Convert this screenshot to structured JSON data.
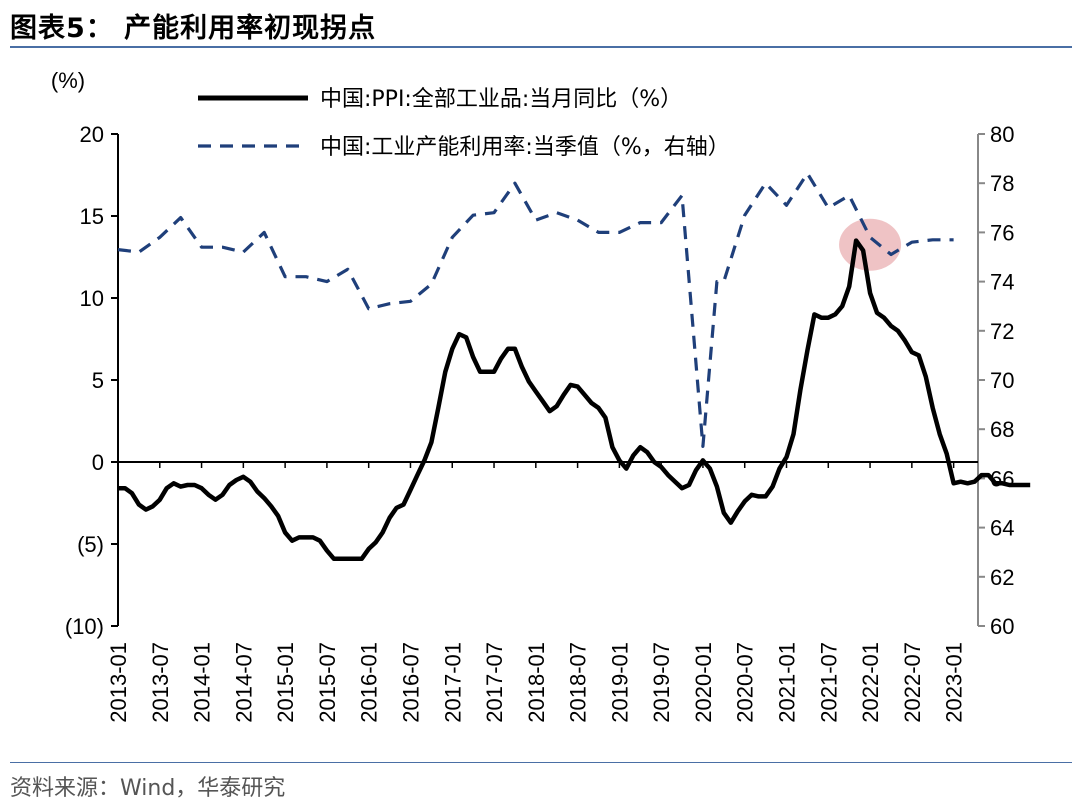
{
  "header": {
    "title": "图表5：  产能利用率初现拐点"
  },
  "footer": {
    "source": "资料来源：Wind，华泰研究"
  },
  "chart_data": {
    "type": "line",
    "left_unit": "(%)",
    "x_tick_labels": [
      "2013-01",
      "2013-07",
      "2014-01",
      "2014-07",
      "2015-01",
      "2015-07",
      "2016-01",
      "2016-07",
      "2017-01",
      "2017-07",
      "2018-01",
      "2018-07",
      "2019-01",
      "2019-07",
      "2020-01",
      "2020-07",
      "2021-01",
      "2021-07",
      "2022-01",
      "2022-07",
      "2023-01"
    ],
    "y_left": {
      "min": -10,
      "max": 20,
      "ticks": [
        20,
        15,
        10,
        5,
        0,
        -5,
        -10
      ],
      "tick_labels": [
        "20",
        "15",
        "10",
        "5",
        "0",
        "(5)",
        "(10)"
      ]
    },
    "y_right": {
      "min": 60,
      "max": 80,
      "ticks": [
        80,
        78,
        76,
        74,
        72,
        70,
        68,
        66,
        64,
        62,
        60
      ],
      "tick_labels": [
        "80",
        "78",
        "76",
        "74",
        "72",
        "70",
        "68",
        "66",
        "64",
        "62",
        "60"
      ]
    },
    "legend_position": "top",
    "colors": {
      "ppi": "#000000",
      "capacity": "#1f3f7a",
      "highlight": "#e8a9ad",
      "axis_right": "#888888"
    },
    "series": [
      {
        "name": "中国:PPI:全部工业品:当月同比（%）",
        "axis": "left",
        "style": "solid",
        "x": [
          0,
          1,
          2,
          3,
          4,
          5,
          6,
          7,
          8,
          9,
          10,
          11,
          12,
          13,
          14,
          15,
          16,
          17,
          18,
          19,
          20,
          21,
          22,
          23,
          24,
          25,
          26,
          27,
          28,
          29,
          30,
          31,
          32,
          33,
          34,
          35,
          36,
          37,
          38,
          39,
          40,
          41,
          42,
          43,
          44,
          45,
          46,
          47,
          48,
          49,
          50,
          51,
          52,
          53,
          54,
          55,
          56,
          57,
          58,
          59,
          60,
          61,
          62,
          63,
          64,
          65,
          66,
          67,
          68,
          69,
          70,
          71,
          72,
          73,
          74,
          75,
          76,
          77,
          78,
          79,
          80,
          81,
          82,
          83,
          84,
          85,
          86,
          87,
          88,
          89,
          90,
          91,
          92,
          93,
          94,
          95,
          96,
          97,
          98,
          99,
          100,
          101,
          102,
          103,
          104,
          105,
          106,
          107,
          108,
          109,
          110,
          111,
          112,
          113,
          114,
          115,
          116,
          117,
          118,
          119,
          120,
          121,
          122,
          123,
          124,
          125,
          126,
          127,
          128,
          129,
          130,
          131
        ],
        "values": [
          -1.6,
          -1.6,
          -1.9,
          -2.6,
          -2.9,
          -2.7,
          -2.3,
          -1.6,
          -1.3,
          -1.5,
          -1.4,
          -1.4,
          -1.6,
          -2.0,
          -2.3,
          -2.0,
          -1.4,
          -1.1,
          -0.9,
          -1.2,
          -1.8,
          -2.2,
          -2.7,
          -3.3,
          -4.3,
          -4.8,
          -4.6,
          -4.6,
          -4.6,
          -4.8,
          -5.4,
          -5.9,
          -5.9,
          -5.9,
          -5.9,
          -5.9,
          -5.3,
          -4.9,
          -4.3,
          -3.4,
          -2.8,
          -2.6,
          -1.7,
          -0.8,
          0.1,
          1.2,
          3.3,
          5.5,
          6.9,
          7.8,
          7.6,
          6.4,
          5.5,
          5.5,
          5.5,
          6.3,
          6.9,
          6.9,
          5.8,
          4.9,
          4.3,
          3.7,
          3.1,
          3.4,
          4.1,
          4.7,
          4.6,
          4.1,
          3.6,
          3.3,
          2.7,
          0.9,
          0.1,
          -0.4,
          0.4,
          0.9,
          0.6,
          0.0,
          -0.3,
          -0.8,
          -1.2,
          -1.6,
          -1.4,
          -0.5,
          0.1,
          -0.4,
          -1.5,
          -3.1,
          -3.7,
          -3.0,
          -2.4,
          -2.0,
          -2.1,
          -2.1,
          -1.5,
          -0.4,
          0.3,
          1.7,
          4.4,
          6.8,
          9.0,
          8.8,
          8.8,
          9.0,
          9.5,
          10.7,
          13.5,
          12.9,
          10.3,
          9.1,
          8.8,
          8.3,
          8.0,
          7.4,
          6.7,
          6.5,
          5.2,
          3.3,
          1.7,
          0.5,
          -1.3,
          -1.2,
          -1.3,
          -1.2,
          -0.8,
          -0.8,
          -1.3,
          -1.3,
          -1.4,
          -1.4,
          -1.4,
          -1.4
        ],
        "end_index": 121
      },
      {
        "name": "中国:工业产能利用率:当季值（%，右轴）",
        "axis": "right",
        "style": "dashed",
        "x": [
          0,
          3,
          6,
          9,
          12,
          15,
          18,
          21,
          24,
          27,
          30,
          33,
          36,
          39,
          42,
          45,
          48,
          51,
          54,
          57,
          60,
          63,
          66,
          69,
          72,
          75,
          78,
          81,
          84,
          86,
          87,
          90,
          93,
          96,
          99,
          102,
          105,
          108,
          111,
          114,
          117,
          120
        ],
        "values": [
          75.3,
          75.2,
          75.8,
          76.6,
          75.4,
          75.4,
          75.2,
          76.0,
          74.2,
          74.2,
          74.0,
          74.5,
          72.9,
          73.1,
          73.2,
          73.9,
          75.8,
          76.7,
          76.8,
          78.0,
          76.5,
          76.8,
          76.5,
          76.0,
          76.0,
          76.4,
          76.4,
          77.5,
          67.3,
          74.0,
          74.0,
          76.7,
          78.0,
          77.1,
          78.4,
          77.0,
          77.5,
          75.8,
          75.1,
          75.6,
          75.7,
          75.7
        ],
        "end_index": 41
      }
    ],
    "highlight": {
      "x": 108,
      "y_right": 75.5
    }
  }
}
